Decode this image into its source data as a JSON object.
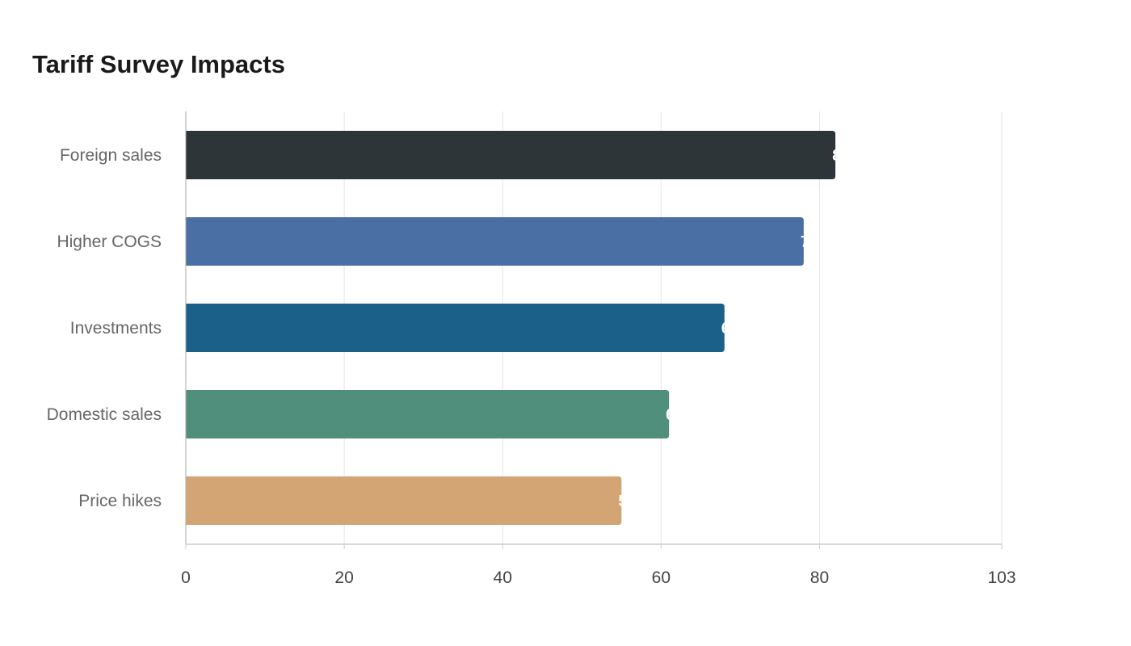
{
  "chart_data": {
    "type": "bar",
    "orientation": "horizontal",
    "title": "Tariff Survey Impacts",
    "xlabel": "",
    "ylabel": "",
    "categories": [
      "Foreign sales",
      "Higher COGS",
      "Investments",
      "Domestic sales",
      "Price hikes"
    ],
    "values": [
      82,
      78,
      68,
      61,
      55
    ],
    "colors": [
      "#2e3538",
      "#4a6fa5",
      "#1a6088",
      "#4f8f7b",
      "#d4a574"
    ],
    "xlim": [
      0,
      103
    ],
    "xticks": [
      0,
      20,
      40,
      60,
      80,
      103
    ],
    "grid": true
  }
}
